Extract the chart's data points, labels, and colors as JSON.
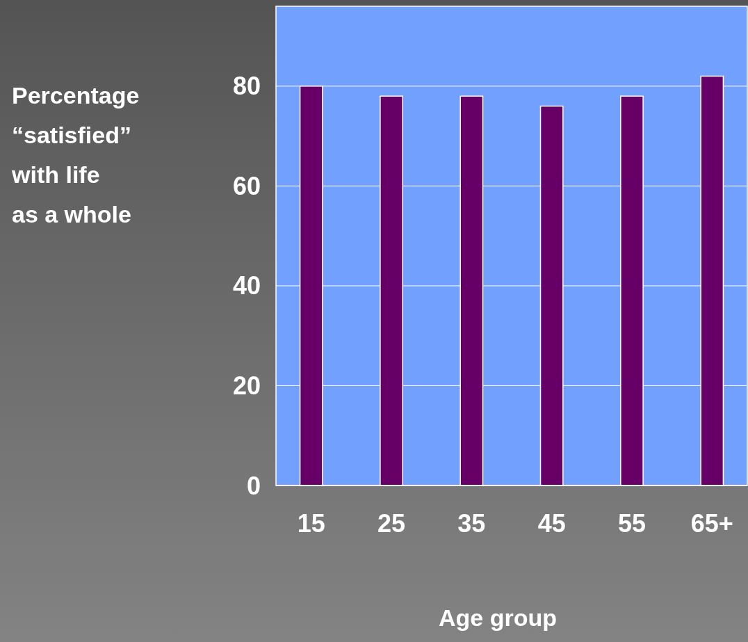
{
  "chart_data": {
    "type": "bar",
    "xlabel": "Age group",
    "ylabel": "Percentage “satisfied” with life as a whole",
    "categories": [
      "15",
      "25",
      "35",
      "45",
      "55",
      "65+"
    ],
    "values": [
      80,
      78,
      78,
      76,
      78,
      82
    ],
    "color": "#660066",
    "ylim": [
      0,
      96
    ],
    "yticks": [
      0,
      20,
      40,
      60,
      80
    ],
    "grid": "y"
  }
}
